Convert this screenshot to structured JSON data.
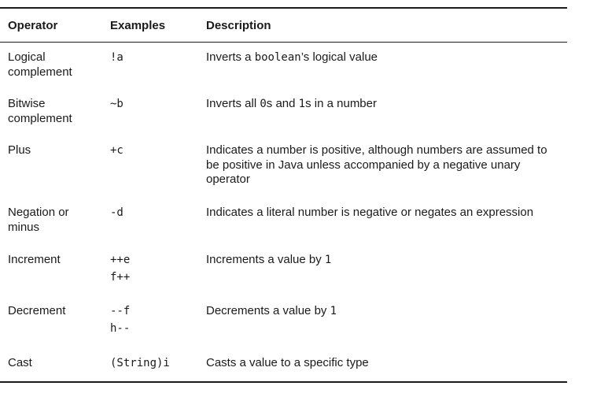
{
  "header": {
    "operator": "Operator",
    "examples": "Examples",
    "description": "Description"
  },
  "rows": [
    {
      "operator": [
        "Logical",
        "complement"
      ],
      "examples": [
        "!a"
      ],
      "description": [
        {
          "text": "Inverts a ",
          "mono": false
        },
        {
          "text": "boolean",
          "mono": true
        },
        {
          "text": "’s logical value",
          "mono": false
        }
      ]
    },
    {
      "operator": [
        "Bitwise",
        "complement"
      ],
      "examples": [
        "~b"
      ],
      "description": [
        {
          "text": "Inverts all ",
          "mono": false
        },
        {
          "text": "0",
          "mono": true
        },
        {
          "text": "s and ",
          "mono": false
        },
        {
          "text": "1",
          "mono": true
        },
        {
          "text": "s in a number",
          "mono": false
        }
      ]
    },
    {
      "operator": [
        "Plus"
      ],
      "examples": [
        "+c"
      ],
      "description": [
        {
          "text": "Indicates a number is positive, although numbers are assumed to be positive in Java unless accompanied by a negative unary operator",
          "mono": false
        }
      ]
    },
    {
      "operator": [
        "Negation or",
        "minus"
      ],
      "examples": [
        "-d"
      ],
      "description": [
        {
          "text": "Indicates a literal number is negative or negates an expression",
          "mono": false
        }
      ]
    },
    {
      "operator": [
        "Increment"
      ],
      "examples": [
        "++e",
        "f++"
      ],
      "description": [
        {
          "text": "Increments a value by ",
          "mono": false
        },
        {
          "text": "1",
          "mono": true
        }
      ]
    },
    {
      "operator": [
        "Decrement"
      ],
      "examples": [
        "--f",
        "h--"
      ],
      "description": [
        {
          "text": "Decrements a value by ",
          "mono": false
        },
        {
          "text": "1",
          "mono": true
        }
      ]
    },
    {
      "operator": [
        "Cast"
      ],
      "examples": [
        "(String)i"
      ],
      "description": [
        {
          "text": "Casts a value to a specific type",
          "mono": false
        }
      ]
    }
  ]
}
